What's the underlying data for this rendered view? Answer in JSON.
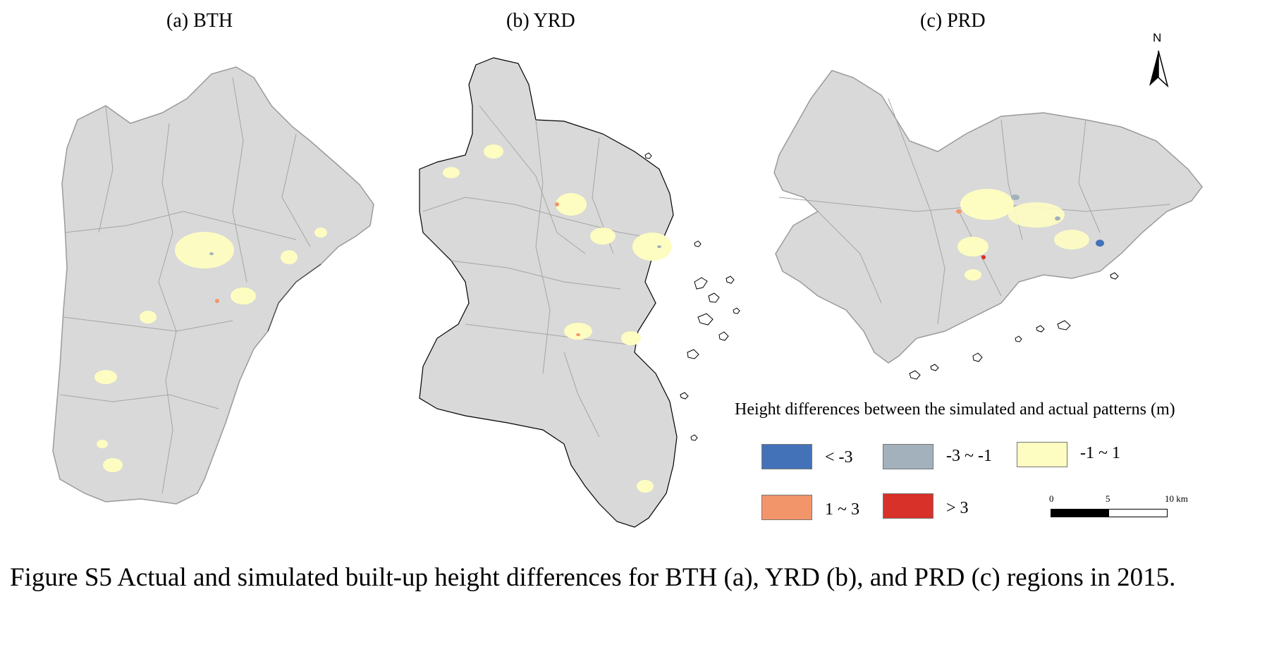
{
  "panels": [
    {
      "id": "a",
      "title": "(a) BTH"
    },
    {
      "id": "b",
      "title": "(b) YRD"
    },
    {
      "id": "c",
      "title": "(c) PRD"
    }
  ],
  "north_arrow": {
    "label": "N"
  },
  "legend": {
    "title": "Height differences between the simulated and actual patterns (m)",
    "classes": [
      {
        "label": "< -3",
        "color": "#4472b8"
      },
      {
        "label": "-3 ~ -1",
        "color": "#a3b1bc"
      },
      {
        "label": "-1 ~ 1",
        "color": "#fefdc1"
      },
      {
        "label": "1 ~ 3",
        "color": "#f3956a"
      },
      {
        "label": "> 3",
        "color": "#d7312a"
      }
    ]
  },
  "scale_bar": {
    "ticks": [
      "0",
      "5",
      "10 km"
    ]
  },
  "colors": {
    "land": "#d9d9d9",
    "boundary": "#9a9a9a",
    "coast": "#000000"
  },
  "caption": "Figure S5 Actual and simulated built-up height differences for BTH (a), YRD (b), and PRD (c) regions in 2015."
}
